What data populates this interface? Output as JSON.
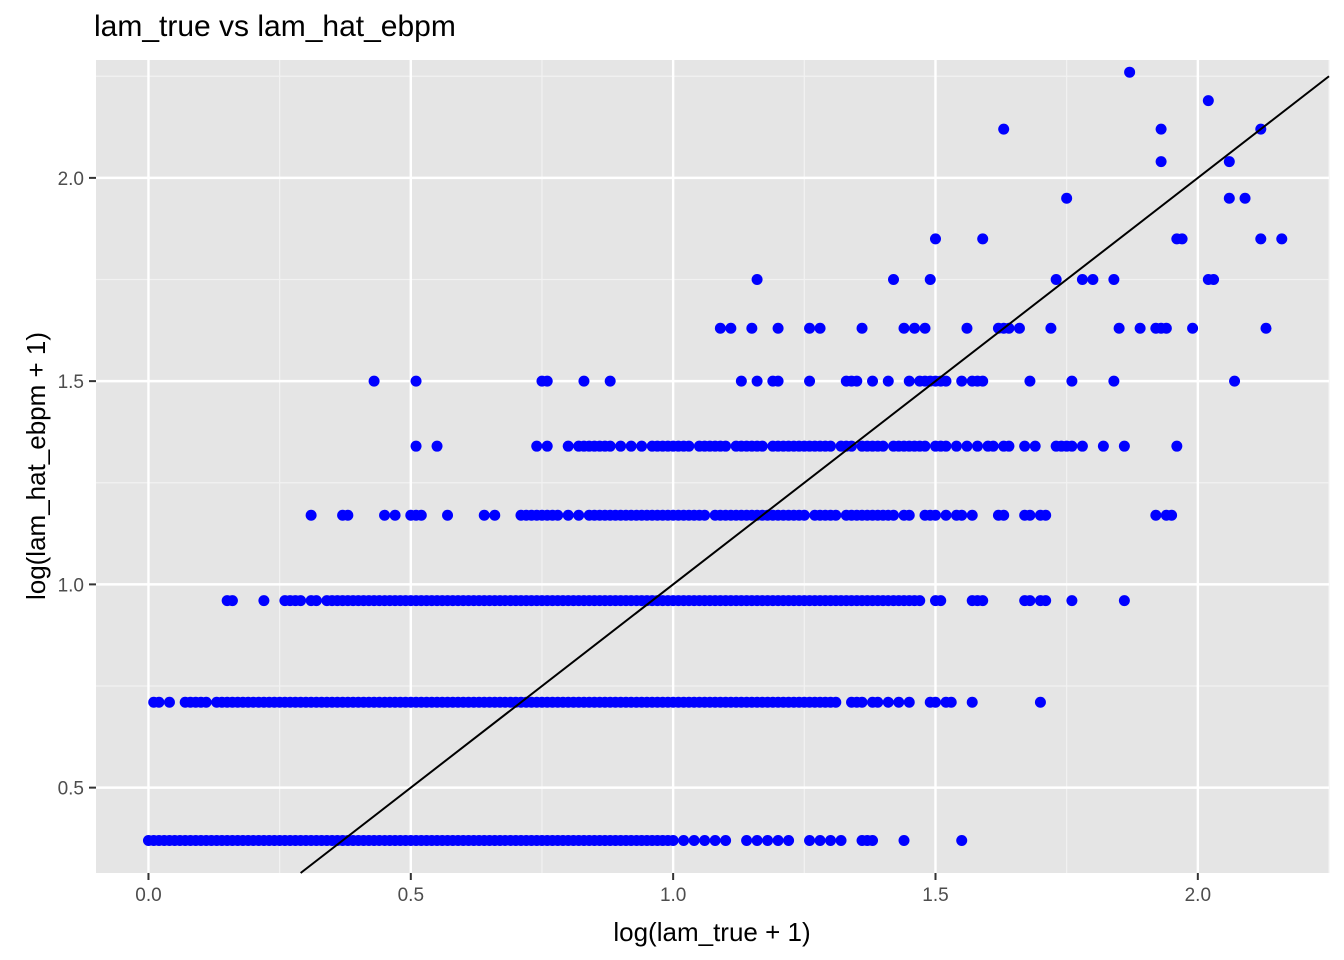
{
  "chart_data": {
    "type": "scatter",
    "title": "lam_true vs lam_hat_ebpm",
    "xlabel": "log(lam_true + 1)",
    "ylabel": "log(lam_hat_ebpm + 1)",
    "xlim": [
      -0.1,
      2.25
    ],
    "ylim": [
      0.29,
      2.29
    ],
    "x_ticks": [
      0.0,
      0.5,
      1.0,
      1.5,
      2.0
    ],
    "x_tick_labels": [
      "0.0",
      "0.5",
      "1.0",
      "1.5",
      "2.0"
    ],
    "y_ticks": [
      0.5,
      1.0,
      1.5,
      2.0
    ],
    "y_tick_labels": [
      "0.5",
      "1.0",
      "1.5",
      "2.0"
    ],
    "grid": true,
    "legend": "none",
    "reference_line": {
      "slope": 1,
      "intercept": 0,
      "color": "#000000"
    },
    "point_color": "#0000FF",
    "panel_color": "#E5E5E5",
    "series": [
      {
        "levels": [
          {
            "y": 0.37,
            "x": [
              0.0,
              0.01,
              0.02,
              0.03,
              0.04,
              0.05,
              0.06,
              0.07,
              0.08,
              0.09,
              0.1,
              0.11,
              0.12,
              0.13,
              0.14,
              0.15,
              0.16,
              0.17,
              0.18,
              0.19,
              0.2,
              0.21,
              0.22,
              0.23,
              0.24,
              0.25,
              0.26,
              0.27,
              0.28,
              0.29,
              0.3,
              0.31,
              0.32,
              0.33,
              0.34,
              0.35,
              0.36,
              0.37,
              0.38,
              0.39,
              0.4,
              0.41,
              0.42,
              0.43,
              0.44,
              0.45,
              0.46,
              0.47,
              0.48,
              0.49,
              0.5,
              0.51,
              0.52,
              0.53,
              0.54,
              0.55,
              0.56,
              0.57,
              0.58,
              0.59,
              0.6,
              0.61,
              0.62,
              0.63,
              0.64,
              0.65,
              0.66,
              0.67,
              0.68,
              0.69,
              0.7,
              0.71,
              0.72,
              0.73,
              0.74,
              0.75,
              0.76,
              0.77,
              0.78,
              0.79,
              0.8,
              0.81,
              0.82,
              0.83,
              0.84,
              0.85,
              0.86,
              0.87,
              0.88,
              0.89,
              0.9,
              0.91,
              0.92,
              0.93,
              0.94,
              0.95,
              0.96,
              0.97,
              0.98,
              0.99,
              1.0,
              1.02,
              1.04,
              1.06,
              1.08,
              1.1,
              1.14,
              1.16,
              1.18,
              1.2,
              1.22,
              1.26,
              1.28,
              1.3,
              1.32,
              1.36,
              1.37,
              1.38,
              1.44,
              1.55
            ]
          },
          {
            "y": 0.71,
            "x": [
              0.01,
              0.02,
              0.04,
              0.07,
              0.08,
              0.09,
              0.1,
              0.11,
              0.13,
              0.14,
              0.15,
              0.16,
              0.17,
              0.18,
              0.19,
              0.2,
              0.21,
              0.22,
              0.23,
              0.24,
              0.25,
              0.26,
              0.27,
              0.28,
              0.29,
              0.3,
              0.31,
              0.32,
              0.33,
              0.34,
              0.35,
              0.36,
              0.37,
              0.38,
              0.39,
              0.4,
              0.41,
              0.42,
              0.43,
              0.44,
              0.45,
              0.46,
              0.47,
              0.48,
              0.49,
              0.5,
              0.51,
              0.52,
              0.53,
              0.54,
              0.55,
              0.56,
              0.57,
              0.58,
              0.59,
              0.6,
              0.61,
              0.62,
              0.63,
              0.64,
              0.65,
              0.66,
              0.67,
              0.68,
              0.69,
              0.7,
              0.71,
              0.72,
              0.73,
              0.74,
              0.75,
              0.76,
              0.77,
              0.78,
              0.79,
              0.8,
              0.81,
              0.82,
              0.83,
              0.84,
              0.85,
              0.86,
              0.87,
              0.88,
              0.89,
              0.9,
              0.91,
              0.92,
              0.93,
              0.94,
              0.95,
              0.96,
              0.97,
              0.98,
              0.99,
              1.0,
              1.01,
              1.02,
              1.03,
              1.04,
              1.05,
              1.06,
              1.07,
              1.08,
              1.09,
              1.1,
              1.11,
              1.12,
              1.13,
              1.14,
              1.15,
              1.16,
              1.17,
              1.18,
              1.19,
              1.2,
              1.21,
              1.22,
              1.23,
              1.24,
              1.25,
              1.26,
              1.27,
              1.28,
              1.29,
              1.3,
              1.31,
              1.34,
              1.35,
              1.36,
              1.38,
              1.39,
              1.41,
              1.43,
              1.45,
              1.49,
              1.5,
              1.52,
              1.53,
              1.57,
              1.7
            ]
          },
          {
            "y": 0.96,
            "x": [
              0.15,
              0.16,
              0.22,
              0.26,
              0.27,
              0.28,
              0.29,
              0.31,
              0.32,
              0.34,
              0.35,
              0.36,
              0.37,
              0.38,
              0.39,
              0.4,
              0.41,
              0.42,
              0.43,
              0.44,
              0.45,
              0.46,
              0.47,
              0.48,
              0.49,
              0.5,
              0.51,
              0.52,
              0.53,
              0.54,
              0.55,
              0.56,
              0.57,
              0.58,
              0.59,
              0.6,
              0.61,
              0.62,
              0.63,
              0.64,
              0.65,
              0.66,
              0.67,
              0.68,
              0.69,
              0.7,
              0.71,
              0.72,
              0.73,
              0.74,
              0.75,
              0.76,
              0.77,
              0.78,
              0.79,
              0.8,
              0.81,
              0.82,
              0.83,
              0.84,
              0.85,
              0.86,
              0.87,
              0.88,
              0.89,
              0.9,
              0.91,
              0.92,
              0.93,
              0.94,
              0.95,
              0.96,
              0.97,
              0.98,
              0.99,
              1.0,
              1.01,
              1.02,
              1.03,
              1.04,
              1.05,
              1.06,
              1.07,
              1.08,
              1.09,
              1.1,
              1.11,
              1.12,
              1.13,
              1.14,
              1.15,
              1.16,
              1.17,
              1.18,
              1.19,
              1.2,
              1.21,
              1.22,
              1.23,
              1.24,
              1.25,
              1.26,
              1.27,
              1.28,
              1.29,
              1.3,
              1.31,
              1.32,
              1.33,
              1.34,
              1.35,
              1.36,
              1.37,
              1.38,
              1.39,
              1.4,
              1.41,
              1.42,
              1.43,
              1.44,
              1.45,
              1.46,
              1.47,
              1.5,
              1.51,
              1.57,
              1.58,
              1.59,
              1.67,
              1.68,
              1.7,
              1.71,
              1.76,
              1.86
            ]
          },
          {
            "y": 1.17,
            "x": [
              0.31,
              0.37,
              0.38,
              0.45,
              0.47,
              0.5,
              0.51,
              0.52,
              0.57,
              0.64,
              0.66,
              0.71,
              0.72,
              0.73,
              0.74,
              0.75,
              0.76,
              0.77,
              0.78,
              0.8,
              0.82,
              0.84,
              0.85,
              0.86,
              0.87,
              0.88,
              0.89,
              0.9,
              0.91,
              0.92,
              0.93,
              0.94,
              0.95,
              0.96,
              0.97,
              0.98,
              0.99,
              1.0,
              1.01,
              1.02,
              1.03,
              1.04,
              1.05,
              1.06,
              1.08,
              1.09,
              1.1,
              1.11,
              1.12,
              1.13,
              1.14,
              1.15,
              1.16,
              1.17,
              1.18,
              1.19,
              1.2,
              1.21,
              1.22,
              1.23,
              1.24,
              1.25,
              1.27,
              1.28,
              1.29,
              1.3,
              1.31,
              1.33,
              1.34,
              1.35,
              1.36,
              1.37,
              1.38,
              1.39,
              1.4,
              1.41,
              1.42,
              1.44,
              1.45,
              1.48,
              1.49,
              1.5,
              1.52,
              1.54,
              1.55,
              1.57,
              1.62,
              1.63,
              1.67,
              1.68,
              1.7,
              1.71,
              1.92,
              1.94,
              1.95
            ]
          },
          {
            "y": 1.34,
            "x": [
              0.51,
              0.55,
              0.74,
              0.76,
              0.8,
              0.82,
              0.83,
              0.84,
              0.85,
              0.86,
              0.87,
              0.88,
              0.9,
              0.92,
              0.94,
              0.96,
              0.97,
              0.98,
              0.99,
              1.0,
              1.01,
              1.02,
              1.03,
              1.05,
              1.06,
              1.07,
              1.08,
              1.09,
              1.1,
              1.12,
              1.13,
              1.14,
              1.15,
              1.16,
              1.17,
              1.19,
              1.2,
              1.21,
              1.22,
              1.23,
              1.24,
              1.25,
              1.26,
              1.27,
              1.28,
              1.29,
              1.3,
              1.32,
              1.33,
              1.34,
              1.36,
              1.37,
              1.38,
              1.39,
              1.4,
              1.42,
              1.43,
              1.44,
              1.45,
              1.46,
              1.47,
              1.48,
              1.5,
              1.51,
              1.52,
              1.54,
              1.56,
              1.58,
              1.6,
              1.61,
              1.63,
              1.64,
              1.67,
              1.69,
              1.73,
              1.74,
              1.75,
              1.76,
              1.78,
              1.82,
              1.86,
              1.96
            ]
          },
          {
            "y": 1.5,
            "x": [
              0.43,
              0.51,
              0.75,
              0.76,
              0.83,
              0.88,
              1.13,
              1.16,
              1.19,
              1.2,
              1.26,
              1.33,
              1.34,
              1.35,
              1.38,
              1.41,
              1.45,
              1.47,
              1.48,
              1.49,
              1.5,
              1.51,
              1.52,
              1.55,
              1.57,
              1.58,
              1.59,
              1.68,
              1.76,
              1.84,
              2.07
            ]
          },
          {
            "y": 1.63,
            "x": [
              1.09,
              1.11,
              1.15,
              1.2,
              1.26,
              1.28,
              1.36,
              1.44,
              1.46,
              1.48,
              1.56,
              1.62,
              1.63,
              1.64,
              1.66,
              1.72,
              1.85,
              1.89,
              1.92,
              1.93,
              1.94,
              1.99,
              2.13
            ]
          },
          {
            "y": 1.75,
            "x": [
              1.16,
              1.42,
              1.49,
              1.73,
              1.78,
              1.8,
              1.84,
              2.02,
              2.03
            ]
          },
          {
            "y": 1.85,
            "x": [
              1.5,
              1.59,
              1.96,
              1.97,
              2.12,
              2.16
            ]
          },
          {
            "y": 1.95,
            "x": [
              1.75,
              2.06,
              2.09
            ]
          },
          {
            "y": 2.04,
            "x": [
              1.93,
              2.06
            ]
          },
          {
            "y": 2.12,
            "x": [
              1.63,
              1.93,
              2.12
            ]
          },
          {
            "y": 2.19,
            "x": [
              2.02
            ]
          },
          {
            "y": 2.26,
            "x": [
              1.87
            ]
          }
        ]
      }
    ]
  }
}
